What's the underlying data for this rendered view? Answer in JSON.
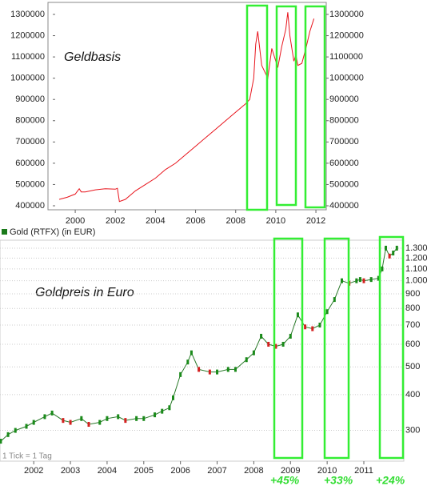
{
  "chart_data": [
    {
      "type": "line",
      "annotations": [
        "Geldbasis"
      ],
      "series": [
        {
          "name": "Geldbasis",
          "color": "#e8141c",
          "x": [
            1999.2,
            1999.6,
            2000,
            2000.2,
            2000.3,
            2000.5,
            2001,
            2001.5,
            2002,
            2002.1,
            2002.2,
            2002.5,
            2003,
            2003.5,
            2004,
            2004.5,
            2005,
            2005.5,
            2006,
            2006.5,
            2007,
            2007.5,
            2008,
            2008.5,
            2008.7,
            2008.9,
            2009.0,
            2009.1,
            2009.3,
            2009.6,
            2009.8,
            2010.0,
            2010.1,
            2010.3,
            2010.5,
            2010.6,
            2010.7,
            2010.9,
            2011.0,
            2011.1,
            2011.3,
            2011.5,
            2011.7,
            2011.9
          ],
          "values": [
            430000,
            440000,
            455000,
            480000,
            465000,
            465000,
            475000,
            480000,
            478000,
            482000,
            420000,
            430000,
            470000,
            500000,
            530000,
            570000,
            600000,
            640000,
            680000,
            720000,
            760000,
            800000,
            840000,
            880000,
            900000,
            1000000,
            1160000,
            1220000,
            1060000,
            1000000,
            1140000,
            1080000,
            1050000,
            1150000,
            1230000,
            1310000,
            1200000,
            1080000,
            1110000,
            1060000,
            1070000,
            1140000,
            1220000,
            1280000
          ]
        }
      ],
      "xlim": [
        1999,
        2012.5
      ],
      "xticks": [
        2000,
        2002,
        2004,
        2006,
        2008,
        2010,
        2012
      ],
      "ylim": [
        380000,
        1360000
      ],
      "yticks": [
        400000,
        500000,
        600000,
        700000,
        800000,
        900000,
        1000000,
        1100000,
        1200000,
        1300000
      ],
      "y2lim": [
        380000,
        1360000
      ],
      "y2ticks": [
        400000,
        500000,
        600000,
        700000,
        800000,
        900000,
        1000000,
        1100000,
        1200000,
        1300000
      ],
      "grid": false
    },
    {
      "type": "line",
      "log_scale": true,
      "grid": true,
      "annotations": [
        "Goldpreis in Euro",
        "1 Tick = 1 Tag",
        "+45%",
        "+33%",
        "+24%"
      ],
      "up_color": "#1a8a1a",
      "down_color": "#d42020",
      "series": [
        {
          "name": "Gold (RTFX) (in EUR)",
          "color": "#2a7a2a",
          "x": [
            2001.1,
            2001.3,
            2001.5,
            2001.8,
            2002,
            2002.3,
            2002.5,
            2002.8,
            2003,
            2003.3,
            2003.5,
            2003.8,
            2004,
            2004.3,
            2004.5,
            2004.8,
            2005,
            2005.3,
            2005.5,
            2005.7,
            2005.8,
            2006,
            2006.2,
            2006.3,
            2006.5,
            2006.8,
            2007,
            2007.3,
            2007.5,
            2007.8,
            2008,
            2008.2,
            2008.4,
            2008.6,
            2008.8,
            2009,
            2009.2,
            2009.4,
            2009.6,
            2009.8,
            2010,
            2010.2,
            2010.4,
            2010.6,
            2010.8,
            2010.9,
            2011,
            2011.2,
            2011.4,
            2011.5,
            2011.6,
            2011.7,
            2011.8,
            2011.9
          ],
          "values": [
            275,
            290,
            300,
            310,
            320,
            335,
            345,
            325,
            320,
            330,
            315,
            320,
            330,
            335,
            325,
            330,
            330,
            340,
            350,
            360,
            390,
            470,
            520,
            560,
            490,
            480,
            480,
            490,
            490,
            530,
            560,
            640,
            600,
            590,
            600,
            640,
            760,
            690,
            680,
            700,
            780,
            860,
            1000,
            980,
            1000,
            1010,
            1000,
            1010,
            1020,
            1100,
            1300,
            1220,
            1250,
            1300
          ]
        }
      ],
      "xlim": [
        2001.08,
        2012.09
      ],
      "xticks": [
        2002,
        2003,
        2004,
        2005,
        2006,
        2007,
        2008,
        2009,
        2010,
        2011
      ],
      "ylim": [
        214,
        1386
      ],
      "yticks": [
        300,
        400,
        500,
        600,
        700,
        800,
        900,
        {
          "value": 1000,
          "label": "1.000"
        },
        {
          "value": 1100,
          "label": "1.100"
        },
        {
          "value": 1200,
          "label": "1.200"
        },
        {
          "value": 1300,
          "label": "1.300"
        }
      ]
    }
  ]
}
